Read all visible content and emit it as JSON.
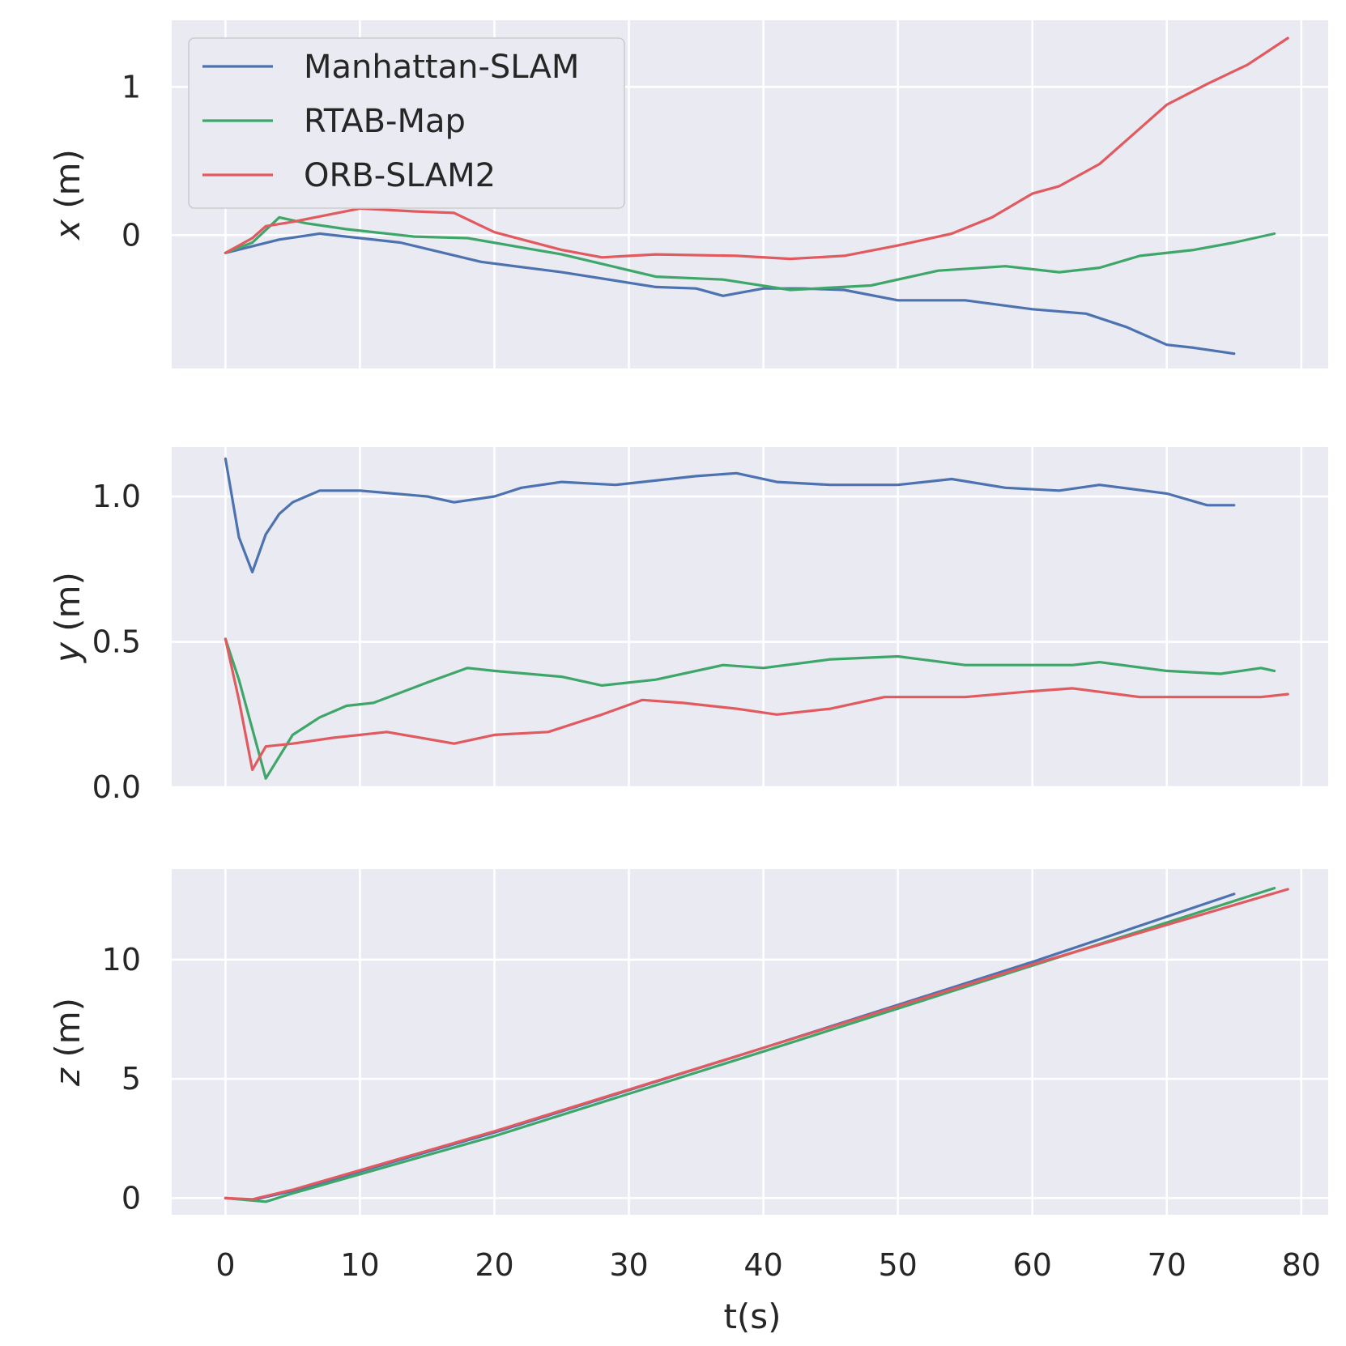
{
  "chart_data": {
    "type": "line",
    "x_axis": {
      "label": "t(s)",
      "xlim": [
        -4,
        82
      ],
      "ticks": [
        0,
        10,
        20,
        30,
        40,
        50,
        60,
        70,
        80
      ],
      "tick_labels": [
        "0",
        "10",
        "20",
        "30",
        "40",
        "50",
        "60",
        "70",
        "80"
      ]
    },
    "legend": {
      "placement": "upper-left of top panel",
      "entries": [
        "Manhattan-SLAM",
        "RTAB-Map",
        "ORB-SLAM2"
      ]
    },
    "colors": {
      "Manhattan-SLAM": "#4c72b0",
      "RTAB-Map": "#3ea669",
      "ORB-SLAM2": "#e05a5f",
      "panel_background": "#eaeaf2",
      "grid": "#ffffff"
    },
    "panels": [
      {
        "id": "x",
        "ylabel_var": "x",
        "ylabel_unit": " (m)",
        "ylim": [
          -0.9,
          1.45
        ],
        "yticks": [
          0,
          1
        ],
        "ytick_labels": [
          "0",
          "1"
        ],
        "series": [
          {
            "name": "Manhattan-SLAM",
            "x": [
              0,
              4,
              7,
              13,
              19,
              25,
              32,
              35,
              37,
              40,
              43,
              46,
              50,
              55,
              60,
              64,
              67,
              70,
              72,
              75
            ],
            "y": [
              -0.12,
              -0.03,
              0.01,
              -0.05,
              -0.18,
              -0.25,
              -0.35,
              -0.36,
              -0.41,
              -0.36,
              -0.36,
              -0.37,
              -0.44,
              -0.44,
              -0.5,
              -0.53,
              -0.62,
              -0.74,
              -0.76,
              -0.8
            ]
          },
          {
            "name": "RTAB-Map",
            "x": [
              0,
              2,
              4,
              6,
              9,
              14,
              18,
              25,
              32,
              37,
              42,
              48,
              53,
              58,
              62,
              65,
              68,
              72,
              75,
              78
            ],
            "y": [
              -0.12,
              -0.05,
              0.12,
              0.08,
              0.04,
              -0.01,
              -0.02,
              -0.13,
              -0.28,
              -0.3,
              -0.37,
              -0.34,
              -0.24,
              -0.21,
              -0.25,
              -0.22,
              -0.14,
              -0.1,
              -0.05,
              0.01
            ]
          },
          {
            "name": "ORB-SLAM2",
            "x": [
              0,
              2,
              3,
              5,
              10,
              14,
              17,
              20,
              25,
              28,
              32,
              38,
              42,
              46,
              50,
              54,
              57,
              60,
              62,
              65,
              70,
              73,
              76,
              79
            ],
            "y": [
              -0.12,
              -0.02,
              0.06,
              0.09,
              0.18,
              0.16,
              0.15,
              0.02,
              -0.1,
              -0.15,
              -0.13,
              -0.14,
              -0.16,
              -0.14,
              -0.07,
              0.01,
              0.12,
              0.28,
              0.33,
              0.48,
              0.88,
              1.02,
              1.15,
              1.33
            ]
          }
        ]
      },
      {
        "id": "y",
        "ylabel_var": "y",
        "ylabel_unit": " (m)",
        "ylim": [
          0.0,
          1.17
        ],
        "yticks": [
          0.0,
          0.5,
          1.0
        ],
        "ytick_labels": [
          "0.0",
          "0.5",
          "1.0"
        ],
        "series": [
          {
            "name": "Manhattan-SLAM",
            "x": [
              0,
              1,
              2,
              3,
              4,
              5,
              7,
              10,
              15,
              17,
              20,
              22,
              25,
              29,
              35,
              38,
              41,
              45,
              50,
              54,
              58,
              62,
              65,
              70,
              73,
              75
            ],
            "y": [
              1.13,
              0.86,
              0.74,
              0.87,
              0.94,
              0.98,
              1.02,
              1.02,
              1.0,
              0.98,
              1.0,
              1.03,
              1.05,
              1.04,
              1.07,
              1.08,
              1.05,
              1.04,
              1.04,
              1.06,
              1.03,
              1.02,
              1.04,
              1.01,
              0.97,
              0.97
            ]
          },
          {
            "name": "RTAB-Map",
            "x": [
              0,
              1,
              2,
              3,
              5,
              7,
              9,
              11,
              15,
              18,
              20,
              25,
              28,
              32,
              37,
              40,
              45,
              50,
              55,
              63,
              65,
              70,
              74,
              77,
              78
            ],
            "y": [
              0.51,
              0.37,
              0.2,
              0.03,
              0.18,
              0.24,
              0.28,
              0.29,
              0.36,
              0.41,
              0.4,
              0.38,
              0.35,
              0.37,
              0.42,
              0.41,
              0.44,
              0.45,
              0.42,
              0.42,
              0.43,
              0.4,
              0.39,
              0.41,
              0.4
            ]
          },
          {
            "name": "ORB-SLAM2",
            "x": [
              0,
              1,
              2,
              3,
              5,
              8,
              12,
              17,
              20,
              24,
              28,
              31,
              34,
              38,
              41,
              45,
              49,
              55,
              60,
              63,
              68,
              72,
              75,
              77,
              79
            ],
            "y": [
              0.51,
              0.3,
              0.06,
              0.14,
              0.15,
              0.17,
              0.19,
              0.15,
              0.18,
              0.19,
              0.25,
              0.3,
              0.29,
              0.27,
              0.25,
              0.27,
              0.31,
              0.31,
              0.33,
              0.34,
              0.31,
              0.31,
              0.31,
              0.31,
              0.32
            ]
          }
        ]
      },
      {
        "id": "z",
        "ylabel_var": "z",
        "ylabel_unit": " (m)",
        "ylim": [
          -0.7,
          13.8
        ],
        "yticks": [
          0,
          5,
          10
        ],
        "ytick_labels": [
          "0",
          "5",
          "10"
        ],
        "series": [
          {
            "name": "Manhattan-SLAM",
            "x": [
              0,
              2,
              5,
              20,
              40,
              60,
              75
            ],
            "y": [
              0.0,
              -0.08,
              0.3,
              2.75,
              6.3,
              9.9,
              12.75
            ]
          },
          {
            "name": "RTAB-Map",
            "x": [
              0,
              3,
              5,
              20,
              40,
              60,
              78
            ],
            "y": [
              0.0,
              -0.15,
              0.2,
              2.6,
              6.15,
              9.75,
              13.0
            ]
          },
          {
            "name": "ORB-SLAM2",
            "x": [
              0,
              2,
              5,
              20,
              40,
              60,
              79
            ],
            "y": [
              0.0,
              -0.05,
              0.35,
              2.8,
              6.3,
              9.8,
              12.95
            ]
          }
        ]
      }
    ]
  }
}
